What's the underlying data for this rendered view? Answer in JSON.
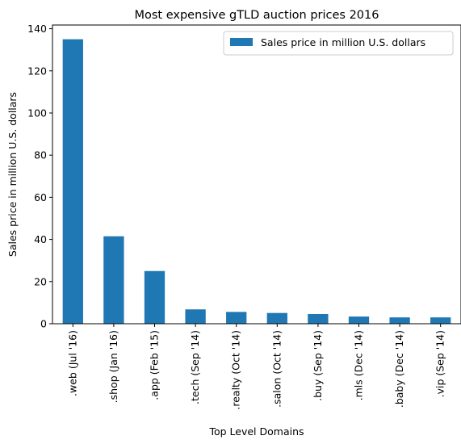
{
  "chart_data": {
    "type": "bar",
    "title": "Most expensive gTLD auction prices 2016",
    "xlabel": "Top Level Domains",
    "ylabel": "Sales price in million U.S. dollars",
    "categories": [
      ".web (Jul '16)",
      ".shop (Jan '16)",
      ".app (Feb '15)",
      ".tech (Sep '14)",
      ".realty (Oct '14)",
      ".salon (Oct '14)",
      ".buy (Sep '14)",
      ".mls (Dec '14)",
      ".baby (Dec '14)",
      ".vip (Sep '14)"
    ],
    "series": [
      {
        "name": "Sales price in million U.S. dollars",
        "values": [
          135,
          41.5,
          25,
          6.8,
          5.6,
          5.1,
          4.6,
          3.4,
          3.0,
          3.0
        ],
        "color": "#1f77b4"
      }
    ],
    "ylim": [
      0,
      141.75
    ],
    "yticks": [
      0,
      20,
      40,
      60,
      80,
      100,
      120,
      140
    ],
    "grid": false,
    "legend": "top-right"
  }
}
